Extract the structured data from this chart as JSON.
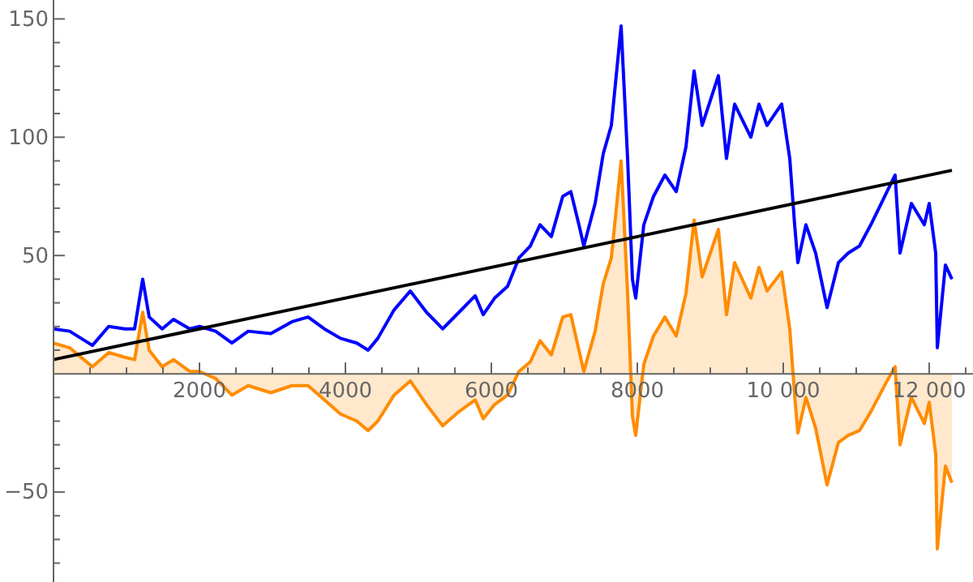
{
  "chart_data": {
    "type": "line",
    "xlim": [
      0,
      12600
    ],
    "ylim": [
      -88,
      158
    ],
    "xticks": [
      {
        "value": 500,
        "label": null
      },
      {
        "value": 1000,
        "label": null
      },
      {
        "value": 1500,
        "label": null
      },
      2000,
      {
        "value": 2500,
        "label": null
      },
      {
        "value": 3000,
        "label": null
      },
      {
        "value": 3500,
        "label": null
      },
      4000,
      {
        "value": 4500,
        "label": null
      },
      {
        "value": 5000,
        "label": null
      },
      {
        "value": 5500,
        "label": null
      },
      6000,
      {
        "value": 6500,
        "label": null
      },
      {
        "value": 7000,
        "label": null
      },
      {
        "value": 7500,
        "label": null
      },
      8000,
      {
        "value": 8500,
        "label": null
      },
      {
        "value": 9000,
        "label": null
      },
      {
        "value": 9500,
        "label": null
      },
      {
        "value": 10000,
        "label": "10 000"
      },
      {
        "value": 10500,
        "label": null
      },
      {
        "value": 11000,
        "label": null
      },
      {
        "value": 11500,
        "label": null
      },
      {
        "value": 12000,
        "label": "12 000"
      },
      {
        "value": 12500,
        "label": null
      }
    ],
    "yticks": [
      {
        "value": -80,
        "label": null
      },
      {
        "value": -70,
        "label": null
      },
      {
        "value": -60,
        "label": null
      },
      -50,
      {
        "value": -40,
        "label": null
      },
      {
        "value": -30,
        "label": null
      },
      {
        "value": -20,
        "label": null
      },
      {
        "value": -10,
        "label": null
      },
      {
        "value": 10,
        "label": null
      },
      {
        "value": 20,
        "label": null
      },
      {
        "value": 30,
        "label": null
      },
      {
        "value": 40,
        "label": null
      },
      50,
      {
        "value": 60,
        "label": null
      },
      {
        "value": 70,
        "label": null
      },
      {
        "value": 80,
        "label": null
      },
      {
        "value": 90,
        "label": null
      },
      100,
      {
        "value": 110,
        "label": null
      },
      {
        "value": 120,
        "label": null
      },
      {
        "value": 130,
        "label": null
      },
      {
        "value": 140,
        "label": null
      },
      150
    ],
    "series": [
      {
        "type": "area",
        "color": "#ff8c00",
        "x": [
          0,
          222,
          533,
          756,
          978,
          1111,
          1222,
          1311,
          1489,
          1644,
          1867,
          2000,
          2222,
          2444,
          2667,
          2978,
          3267,
          3489,
          3711,
          3933,
          4156,
          4311,
          4444,
          4667,
          4889,
          5111,
          5333,
          5556,
          5778,
          5889,
          6044,
          6222,
          6378,
          6533,
          6667,
          6822,
          6978,
          7089,
          7200,
          7267,
          7422,
          7533,
          7644,
          7778,
          7867,
          7933,
          7978,
          8089,
          8222,
          8378,
          8533,
          8667,
          8778,
          8889,
          9111,
          9222,
          9333,
          9556,
          9667,
          9778,
          9978,
          10089,
          10156,
          10200,
          10311,
          10444,
          10600,
          10756,
          10889,
          11044,
          11200,
          11422,
          11533,
          11600,
          11756,
          11933,
          12000,
          12089,
          12111,
          12222,
          12311
        ],
        "values": [
          13,
          11,
          3,
          9,
          7,
          6,
          26,
          10,
          3,
          6,
          1,
          1,
          -2,
          -9,
          -5,
          -8,
          -5,
          -5,
          -11,
          -17,
          -20,
          -24,
          -20,
          -9,
          -3,
          -13,
          -22,
          -16,
          -11,
          -19,
          -13,
          -9,
          1,
          5,
          14,
          8,
          24,
          25,
          10,
          1,
          18,
          38,
          49,
          90,
          34,
          -18,
          -26,
          4,
          16,
          24,
          16,
          34,
          65,
          41,
          61,
          25,
          47,
          32,
          45,
          35,
          43,
          19,
          -9,
          -25,
          -10,
          -23,
          -47,
          -29,
          -26,
          -24,
          -16,
          -3,
          3,
          -30,
          -10,
          -21,
          -12,
          -34,
          -74,
          -39,
          -46
        ]
      },
      {
        "color": "#0000ff",
        "x": [
          0,
          222,
          533,
          756,
          978,
          1111,
          1222,
          1311,
          1489,
          1644,
          1867,
          2000,
          2222,
          2444,
          2667,
          2978,
          3267,
          3489,
          3711,
          3933,
          4156,
          4311,
          4444,
          4667,
          4889,
          5111,
          5333,
          5556,
          5778,
          5889,
          6044,
          6222,
          6378,
          6533,
          6667,
          6822,
          6978,
          7089,
          7200,
          7267,
          7422,
          7533,
          7644,
          7778,
          7867,
          7933,
          7978,
          8089,
          8222,
          8378,
          8533,
          8667,
          8778,
          8889,
          9111,
          9222,
          9333,
          9556,
          9667,
          9778,
          9978,
          10089,
          10156,
          10200,
          10311,
          10444,
          10600,
          10756,
          10889,
          11044,
          11200,
          11422,
          11533,
          11600,
          11756,
          11933,
          12000,
          12089,
          12111,
          12222,
          12311
        ],
        "values": [
          19,
          18,
          12,
          20,
          19,
          19,
          40,
          24,
          19,
          23,
          19,
          20,
          18,
          13,
          18,
          17,
          22,
          24,
          19,
          15,
          13,
          10,
          15,
          27,
          35,
          26,
          19,
          26,
          33,
          25,
          32,
          37,
          49,
          54,
          63,
          58,
          75,
          77,
          63,
          54,
          72,
          93,
          105,
          147,
          91,
          40,
          32,
          63,
          75,
          84,
          77,
          96,
          128,
          105,
          126,
          91,
          114,
          100,
          114,
          105,
          114,
          91,
          63,
          47,
          63,
          51,
          28,
          47,
          51,
          54,
          63,
          77,
          84,
          51,
          72,
          63,
          72,
          51,
          11,
          46,
          40
        ]
      },
      {
        "color": "#000000",
        "x": [
          0,
          12311
        ],
        "values": [
          6,
          86
        ]
      }
    ]
  }
}
